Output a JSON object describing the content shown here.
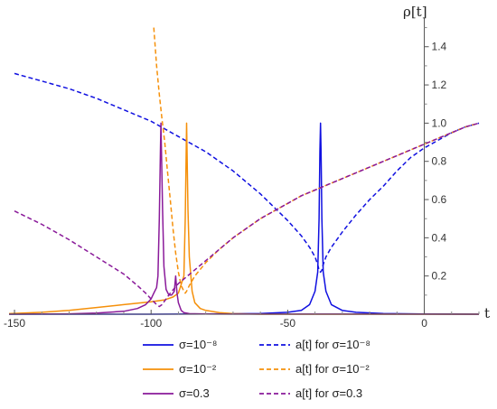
{
  "chart_data": {
    "type": "line",
    "xlabel": "t",
    "ylabel": "ρ[t]",
    "xlim": [
      -152,
      20
    ],
    "ylim": [
      0,
      1.55
    ],
    "x_ticks": [
      -150,
      -100,
      -50,
      0
    ],
    "x_tick_labels": [
      "-150",
      "-100",
      "-50",
      "0"
    ],
    "y_ticks": [
      0.2,
      0.4,
      0.6,
      0.8,
      1.0,
      1.2,
      1.4
    ],
    "y_tick_labels": [
      "0.2",
      "0.4",
      "0.6",
      "0.8",
      "1.0",
      "1.2",
      "1.4"
    ],
    "grid": false,
    "legend_position": "bottom",
    "series": [
      {
        "name": "σ=10⁻⁸",
        "color": "#1010e0",
        "dash": "solid",
        "points": [
          [
            -152,
            0
          ],
          [
            -100,
            0
          ],
          [
            -80,
            0.001
          ],
          [
            -60,
            0.004
          ],
          [
            -50,
            0.01
          ],
          [
            -45,
            0.02
          ],
          [
            -42,
            0.05
          ],
          [
            -40,
            0.12
          ],
          [
            -39,
            0.22
          ],
          [
            -38.5,
            0.5
          ],
          [
            -38.2,
            0.85
          ],
          [
            -38,
            1.0
          ],
          [
            -37.8,
            0.85
          ],
          [
            -37.5,
            0.5
          ],
          [
            -37,
            0.22
          ],
          [
            -36,
            0.12
          ],
          [
            -34,
            0.05
          ],
          [
            -30,
            0.02
          ],
          [
            -25,
            0.01
          ],
          [
            -15,
            0.004
          ],
          [
            0,
            0.001
          ],
          [
            20,
            0
          ]
        ]
      },
      {
        "name": "a[t] for σ=10⁻⁸",
        "color": "#1010e0",
        "dash": "dashed",
        "points": [
          [
            -150,
            1.26
          ],
          [
            -140,
            1.22
          ],
          [
            -130,
            1.18
          ],
          [
            -120,
            1.13
          ],
          [
            -110,
            1.07
          ],
          [
            -100,
            1.01
          ],
          [
            -90,
            0.93
          ],
          [
            -80,
            0.85
          ],
          [
            -70,
            0.75
          ],
          [
            -60,
            0.63
          ],
          [
            -50,
            0.49
          ],
          [
            -45,
            0.41
          ],
          [
            -42,
            0.35
          ],
          [
            -40,
            0.3
          ],
          [
            -39,
            0.26
          ],
          [
            -38.5,
            0.23
          ],
          [
            -38,
            0.22
          ],
          [
            -37.5,
            0.23
          ],
          [
            -37,
            0.26
          ],
          [
            -36,
            0.3
          ],
          [
            -34,
            0.35
          ],
          [
            -30,
            0.43
          ],
          [
            -25,
            0.52
          ],
          [
            -20,
            0.6
          ],
          [
            -15,
            0.67
          ],
          [
            -10,
            0.75
          ],
          [
            -5,
            0.82
          ],
          [
            0,
            0.87
          ],
          [
            5,
            0.91
          ],
          [
            10,
            0.95
          ],
          [
            15,
            0.98
          ],
          [
            20,
            1.0
          ]
        ]
      },
      {
        "name": "σ=10⁻²",
        "color": "#f5900a",
        "dash": "solid",
        "points": [
          [
            -152,
            0.003
          ],
          [
            -140,
            0.01
          ],
          [
            -130,
            0.02
          ],
          [
            -120,
            0.035
          ],
          [
            -110,
            0.05
          ],
          [
            -100,
            0.065
          ],
          [
            -95,
            0.075
          ],
          [
            -92,
            0.09
          ],
          [
            -90,
            0.11
          ],
          [
            -88,
            0.2
          ],
          [
            -87.5,
            0.5
          ],
          [
            -87,
            1.0
          ],
          [
            -86.5,
            0.55
          ],
          [
            -86,
            0.3
          ],
          [
            -85,
            0.12
          ],
          [
            -84,
            0.06
          ],
          [
            -82,
            0.03
          ],
          [
            -80,
            0.02
          ],
          [
            -75,
            0.008
          ],
          [
            -70,
            0.003
          ],
          [
            -60,
            0
          ],
          [
            20,
            0
          ]
        ]
      },
      {
        "name": "a[t] for σ=10⁻²",
        "color": "#f5900a",
        "dash": "dashed",
        "points": [
          [
            -99,
            1.5
          ],
          [
            -98,
            1.3
          ],
          [
            -97,
            1.15
          ],
          [
            -96,
            1.02
          ],
          [
            -95,
            0.9
          ],
          [
            -94,
            0.75
          ],
          [
            -93,
            0.6
          ],
          [
            -92,
            0.45
          ],
          [
            -91,
            0.32
          ],
          [
            -90,
            0.22
          ],
          [
            -89,
            0.15
          ],
          [
            -88,
            0.12
          ],
          [
            -87.5,
            0.11
          ],
          [
            -87,
            0.12
          ],
          [
            -86,
            0.15
          ],
          [
            -84,
            0.2
          ],
          [
            -80,
            0.27
          ],
          [
            -75,
            0.34
          ],
          [
            -70,
            0.4
          ],
          [
            -65,
            0.45
          ],
          [
            -60,
            0.5
          ],
          [
            -55,
            0.54
          ],
          [
            -50,
            0.58
          ],
          [
            -45,
            0.62
          ],
          [
            -40,
            0.65
          ],
          [
            -35,
            0.68
          ],
          [
            -30,
            0.71
          ],
          [
            -25,
            0.74
          ],
          [
            -20,
            0.77
          ],
          [
            -15,
            0.8
          ],
          [
            -10,
            0.83
          ],
          [
            -5,
            0.86
          ],
          [
            0,
            0.89
          ],
          [
            5,
            0.92
          ],
          [
            10,
            0.95
          ],
          [
            15,
            0.98
          ],
          [
            20,
            1.0
          ]
        ]
      },
      {
        "name": "σ=0.3",
        "color": "#8a1a9a",
        "dash": "solid",
        "points": [
          [
            -152,
            0
          ],
          [
            -130,
            0.002
          ],
          [
            -120,
            0.006
          ],
          [
            -110,
            0.015
          ],
          [
            -105,
            0.03
          ],
          [
            -102,
            0.05
          ],
          [
            -100,
            0.08
          ],
          [
            -99,
            0.11
          ],
          [
            -98,
            0.14
          ],
          [
            -97.5,
            0.2
          ],
          [
            -97,
            0.5
          ],
          [
            -96.6,
            0.85
          ],
          [
            -96.4,
            1.0
          ],
          [
            -96.2,
            0.85
          ],
          [
            -95.8,
            0.55
          ],
          [
            -95.3,
            0.25
          ],
          [
            -94.5,
            0.13
          ],
          [
            -93.5,
            0.1
          ],
          [
            -92.5,
            0.1
          ],
          [
            -91.5,
            0.12
          ],
          [
            -91,
            0.2
          ],
          [
            -90.5,
            0.11
          ],
          [
            -90,
            0.06
          ],
          [
            -89,
            0.02
          ],
          [
            -88,
            0.008
          ],
          [
            -86,
            0.003
          ],
          [
            -80,
            0.001
          ],
          [
            20,
            0
          ]
        ]
      },
      {
        "name": "a[t] for σ=0.3",
        "color": "#8a1a9a",
        "dash": "dashed",
        "points": [
          [
            -150,
            0.54
          ],
          [
            -140,
            0.47
          ],
          [
            -130,
            0.39
          ],
          [
            -120,
            0.3
          ],
          [
            -110,
            0.21
          ],
          [
            -105,
            0.15
          ],
          [
            -102,
            0.11
          ],
          [
            -100,
            0.08
          ],
          [
            -98,
            0.05
          ],
          [
            -97,
            0.04
          ],
          [
            -96,
            0.05
          ],
          [
            -95,
            0.07
          ],
          [
            -93,
            0.11
          ],
          [
            -90,
            0.16
          ],
          [
            -85,
            0.22
          ],
          [
            -80,
            0.28
          ],
          [
            -75,
            0.34
          ],
          [
            -70,
            0.4
          ],
          [
            -65,
            0.45
          ],
          [
            -60,
            0.5
          ],
          [
            -55,
            0.54
          ],
          [
            -50,
            0.58
          ],
          [
            -45,
            0.62
          ],
          [
            -40,
            0.65
          ],
          [
            -35,
            0.68
          ],
          [
            -30,
            0.71
          ],
          [
            -25,
            0.74
          ],
          [
            -20,
            0.77
          ],
          [
            -15,
            0.8
          ],
          [
            -10,
            0.83
          ],
          [
            -5,
            0.86
          ],
          [
            0,
            0.89
          ],
          [
            5,
            0.92
          ],
          [
            10,
            0.95
          ],
          [
            15,
            0.98
          ],
          [
            20,
            1.0
          ]
        ]
      }
    ]
  }
}
